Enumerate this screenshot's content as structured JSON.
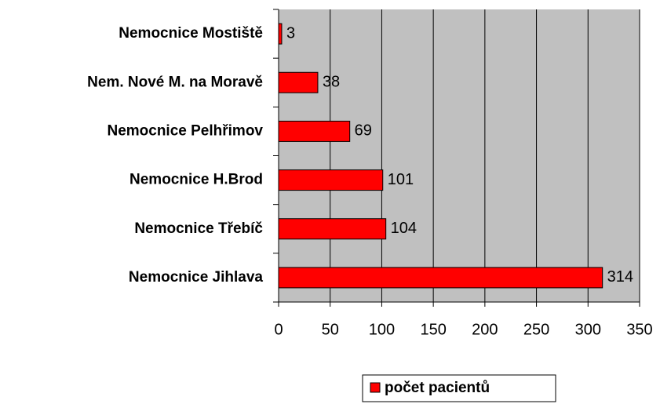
{
  "chart_data": {
    "type": "bar",
    "orientation": "horizontal",
    "categories": [
      "Nemocnice Mostiště",
      "Nem. Nové M. na Moravě",
      "Nemocnice Pelhřimov",
      "Nemocnice H.Brod",
      "Nemocnice Třebíč",
      "Nemocnice Jihlava"
    ],
    "series": [
      {
        "name": "počet pacientů",
        "color": "#ff0000",
        "values": [
          3,
          38,
          69,
          101,
          104,
          314
        ]
      }
    ],
    "xlim": [
      0,
      350
    ],
    "xticks": [
      0,
      50,
      100,
      150,
      200,
      250,
      300,
      350
    ],
    "grid": true,
    "legend": "bottom"
  }
}
